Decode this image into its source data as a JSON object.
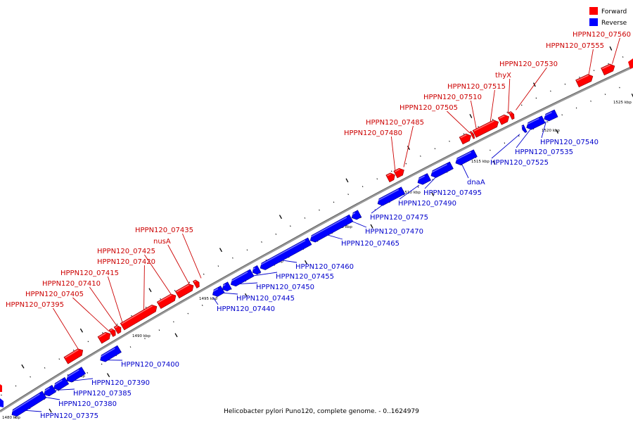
{
  "legend": {
    "forward": {
      "label": "Forward",
      "color": "#ff0000"
    },
    "reverse": {
      "label": "Reverse",
      "color": "#0000ff"
    }
  },
  "caption": "Helicobacter pylori Puno120, complete genome. - 0..1624979",
  "colors": {
    "forward_text": "#cc0000",
    "reverse_text": "#0000cc",
    "backbone": "#9a9a9a"
  },
  "ticks": {
    "unit": "kbp",
    "labels": [
      "1480 kbp",
      "1485 kbp",
      "1490 kbp",
      "1495 kbp",
      "1500 kbp",
      "1505 kbp",
      "1510 kbp",
      "1515 kbp",
      "1520 kbp",
      "1525 kbp"
    ]
  },
  "genes": {
    "forward": [
      "HPPN120_07395",
      "HPPN120_07405",
      "HPPN120_07410",
      "HPPN120_07415",
      "HPPN120_07420",
      "HPPN120_07425",
      "nusA",
      "HPPN120_07435",
      "HPPN120_07480",
      "HPPN120_07485",
      "HPPN120_07505",
      "HPPN120_07510",
      "HPPN120_07515",
      "thyX",
      "HPPN120_07530",
      "HPPN120_07555",
      "HPPN120_07560"
    ],
    "reverse": [
      "HPPN120_07375",
      "HPPN120_07380",
      "HPPN120_07385",
      "HPPN120_07390",
      "HPPN120_07400",
      "HPPN120_07440",
      "HPPN120_07445",
      "HPPN120_07450",
      "HPPN120_07455",
      "HPPN120_07460",
      "HPPN120_07465",
      "HPPN120_07470",
      "HPPN120_07475",
      "HPPN120_07490",
      "HPPN120_07495",
      "dnaA",
      "HPPN120_07525",
      "HPPN120_07535",
      "HPPN120_07540"
    ]
  }
}
